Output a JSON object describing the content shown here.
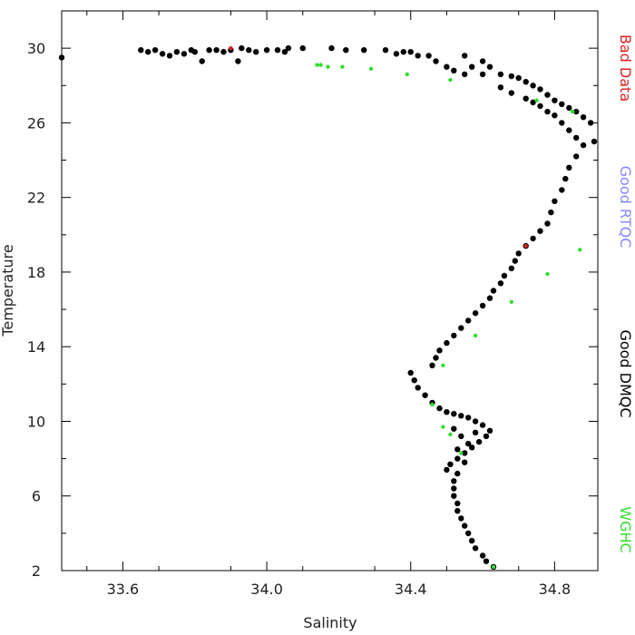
{
  "chart_data": {
    "type": "scatter",
    "title": "",
    "xlabel": "Salinity",
    "ylabel": "Temperature",
    "xlim": [
      33.43,
      34.92
    ],
    "ylim": [
      2,
      32
    ],
    "xticks": [
      33.6,
      34.0,
      34.4,
      34.8
    ],
    "xtick_labels": [
      "33.6",
      "34.0",
      "34.4",
      "34.8"
    ],
    "yticks": [
      2,
      6,
      10,
      14,
      18,
      22,
      26,
      30
    ],
    "ytick_labels": [
      "2",
      "6",
      "10",
      "14",
      "18",
      "22",
      "26",
      "30"
    ],
    "grid": false,
    "legend_position": "right (vertical)",
    "series": [
      {
        "name": "Good DMQC",
        "color": "#000000",
        "points": [
          [
            33.43,
            29.5
          ],
          [
            33.65,
            29.9
          ],
          [
            33.67,
            29.8
          ],
          [
            33.69,
            29.9
          ],
          [
            33.71,
            29.7
          ],
          [
            33.73,
            29.6
          ],
          [
            33.75,
            29.8
          ],
          [
            33.77,
            29.7
          ],
          [
            33.79,
            29.9
          ],
          [
            33.8,
            29.8
          ],
          [
            33.82,
            29.3
          ],
          [
            33.84,
            29.9
          ],
          [
            33.86,
            29.9
          ],
          [
            33.88,
            29.8
          ],
          [
            33.9,
            29.9
          ],
          [
            33.92,
            29.3
          ],
          [
            33.93,
            30.0
          ],
          [
            33.95,
            29.9
          ],
          [
            33.97,
            29.8
          ],
          [
            34.0,
            29.9
          ],
          [
            34.03,
            29.9
          ],
          [
            34.05,
            29.8
          ],
          [
            34.06,
            30.0
          ],
          [
            34.1,
            30.0
          ],
          [
            34.18,
            30.0
          ],
          [
            34.22,
            29.9
          ],
          [
            34.27,
            29.9
          ],
          [
            34.33,
            29.9
          ],
          [
            34.36,
            29.7
          ],
          [
            34.38,
            29.8
          ],
          [
            34.4,
            29.8
          ],
          [
            34.42,
            29.6
          ],
          [
            34.45,
            29.6
          ],
          [
            34.47,
            29.3
          ],
          [
            34.5,
            29.0
          ],
          [
            34.52,
            28.8
          ],
          [
            34.55,
            28.6
          ],
          [
            34.57,
            29.0
          ],
          [
            34.6,
            28.6
          ],
          [
            34.55,
            29.6
          ],
          [
            34.6,
            29.3
          ],
          [
            34.62,
            29.0
          ],
          [
            34.65,
            28.6
          ],
          [
            34.68,
            28.5
          ],
          [
            34.7,
            28.4
          ],
          [
            34.72,
            28.2
          ],
          [
            34.74,
            28.0
          ],
          [
            34.76,
            27.8
          ],
          [
            34.78,
            27.5
          ],
          [
            34.8,
            27.2
          ],
          [
            34.82,
            27.0
          ],
          [
            34.84,
            26.8
          ],
          [
            34.86,
            26.6
          ],
          [
            34.88,
            26.3
          ],
          [
            34.9,
            26.0
          ],
          [
            34.91,
            25.0
          ],
          [
            34.65,
            27.9
          ],
          [
            34.68,
            27.6
          ],
          [
            34.72,
            27.3
          ],
          [
            34.74,
            27.1
          ],
          [
            34.76,
            26.9
          ],
          [
            34.78,
            26.6
          ],
          [
            34.8,
            26.4
          ],
          [
            34.82,
            26.0
          ],
          [
            34.84,
            25.6
          ],
          [
            34.86,
            25.2
          ],
          [
            34.88,
            24.8
          ],
          [
            34.86,
            24.2
          ],
          [
            34.84,
            23.6
          ],
          [
            34.83,
            23.0
          ],
          [
            34.82,
            22.4
          ],
          [
            34.8,
            21.8
          ],
          [
            34.79,
            21.2
          ],
          [
            34.78,
            20.6
          ],
          [
            34.76,
            20.2
          ],
          [
            34.74,
            19.8
          ],
          [
            34.72,
            19.4
          ],
          [
            34.7,
            19.0
          ],
          [
            34.69,
            18.6
          ],
          [
            34.68,
            18.2
          ],
          [
            34.66,
            17.8
          ],
          [
            34.65,
            17.4
          ],
          [
            34.63,
            17.0
          ],
          [
            34.62,
            16.6
          ],
          [
            34.6,
            16.2
          ],
          [
            34.58,
            15.8
          ],
          [
            34.56,
            15.4
          ],
          [
            34.54,
            15.0
          ],
          [
            34.52,
            14.6
          ],
          [
            34.5,
            14.2
          ],
          [
            34.48,
            13.8
          ],
          [
            34.47,
            13.4
          ],
          [
            34.46,
            13.0
          ],
          [
            34.4,
            12.6
          ],
          [
            34.41,
            12.2
          ],
          [
            34.42,
            11.8
          ],
          [
            34.44,
            11.4
          ],
          [
            34.46,
            11.0
          ],
          [
            34.48,
            10.7
          ],
          [
            34.5,
            10.5
          ],
          [
            34.52,
            10.4
          ],
          [
            34.54,
            10.3
          ],
          [
            34.56,
            10.2
          ],
          [
            34.58,
            10.0
          ],
          [
            34.6,
            9.8
          ],
          [
            34.62,
            9.5
          ],
          [
            34.61,
            9.2
          ],
          [
            34.59,
            8.9
          ],
          [
            34.57,
            8.6
          ],
          [
            34.55,
            8.3
          ],
          [
            34.53,
            8.0
          ],
          [
            34.51,
            7.7
          ],
          [
            34.5,
            7.4
          ],
          [
            34.52,
            9.6
          ],
          [
            34.54,
            9.2
          ],
          [
            34.56,
            8.8
          ],
          [
            34.58,
            9.4
          ],
          [
            34.53,
            8.5
          ],
          [
            34.55,
            7.8
          ],
          [
            34.53,
            7.2
          ],
          [
            34.52,
            6.8
          ],
          [
            34.52,
            6.4
          ],
          [
            34.52,
            6.0
          ],
          [
            34.53,
            5.6
          ],
          [
            34.53,
            5.2
          ],
          [
            34.54,
            4.8
          ],
          [
            34.55,
            4.4
          ],
          [
            34.56,
            4.0
          ],
          [
            34.57,
            3.6
          ],
          [
            34.58,
            3.2
          ],
          [
            34.6,
            2.8
          ],
          [
            34.61,
            2.5
          ],
          [
            34.63,
            2.2
          ]
        ]
      },
      {
        "name": "WGHC",
        "color": "#33dd33",
        "points": [
          [
            34.14,
            29.1
          ],
          [
            34.15,
            29.1
          ],
          [
            34.17,
            29.0
          ],
          [
            34.21,
            29.0
          ],
          [
            34.29,
            28.9
          ],
          [
            34.39,
            28.6
          ],
          [
            34.51,
            28.3
          ],
          [
            34.75,
            27.2
          ],
          [
            34.85,
            26.6
          ],
          [
            34.87,
            19.2
          ],
          [
            34.78,
            17.9
          ],
          [
            34.68,
            16.4
          ],
          [
            34.58,
            14.6
          ],
          [
            34.49,
            13.0
          ],
          [
            34.46,
            10.9
          ],
          [
            34.49,
            9.7
          ],
          [
            34.51,
            9.3
          ],
          [
            34.54,
            8.3
          ],
          [
            34.63,
            2.2
          ]
        ]
      },
      {
        "name": "Good RTQC",
        "color": "#8888ff",
        "points": []
      },
      {
        "name": "Bad Data",
        "color": "#dd2222",
        "points": [
          [
            33.9,
            30.0
          ],
          [
            34.72,
            19.4
          ]
        ]
      }
    ],
    "legend_order": [
      "Bad Data",
      "Good RTQC",
      "Good DMQC",
      "WGHC"
    ]
  }
}
